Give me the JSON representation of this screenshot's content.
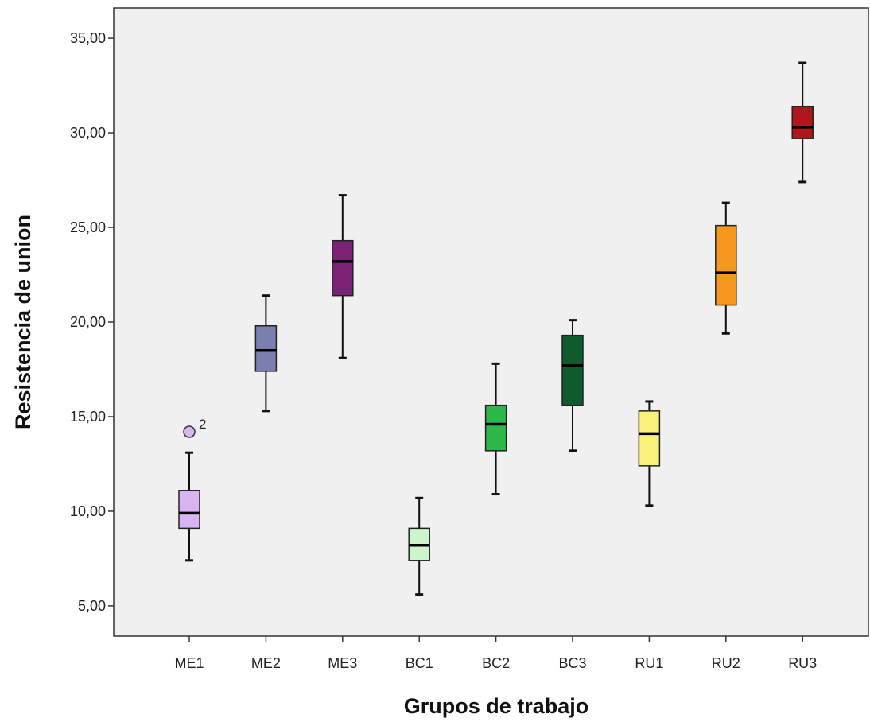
{
  "chart_data": {
    "type": "boxplot",
    "xlabel": "Grupos de trabajo",
    "ylabel": "Resistencia de union",
    "ylim": [
      3.4,
      36.6
    ],
    "yticks": [
      5,
      10,
      15,
      20,
      25,
      30,
      35
    ],
    "ytick_labels": [
      "5,00",
      "10,00",
      "15,00",
      "20,00",
      "25,00",
      "30,00",
      "35,00"
    ],
    "grid": false,
    "plot_background": "#f0f0f0",
    "categories": [
      "ME1",
      "ME2",
      "ME3",
      "BC1",
      "BC2",
      "BC3",
      "RU1",
      "RU2",
      "RU3"
    ],
    "boxes": [
      {
        "name": "ME1",
        "color": "#d8b4f0",
        "min": 7.4,
        "q1": 9.1,
        "median": 9.9,
        "q3": 11.1,
        "max": 13.1,
        "outliers": [
          {
            "value": 14.2,
            "label": "2"
          }
        ]
      },
      {
        "name": "ME2",
        "color": "#7b7fb0",
        "min": 15.3,
        "q1": 17.4,
        "median": 18.5,
        "q3": 19.8,
        "max": 21.4,
        "outliers": []
      },
      {
        "name": "ME3",
        "color": "#7a2374",
        "min": 18.1,
        "q1": 21.4,
        "median": 23.2,
        "q3": 24.3,
        "max": 26.7,
        "outliers": []
      },
      {
        "name": "BC1",
        "color": "#ccf5cc",
        "min": 5.6,
        "q1": 7.4,
        "median": 8.2,
        "q3": 9.1,
        "max": 10.7,
        "outliers": []
      },
      {
        "name": "BC2",
        "color": "#2db84a",
        "min": 10.9,
        "q1": 13.2,
        "median": 14.6,
        "q3": 15.6,
        "max": 17.8,
        "outliers": []
      },
      {
        "name": "BC3",
        "color": "#0f5b2b",
        "min": 13.2,
        "q1": 15.6,
        "median": 17.7,
        "q3": 19.3,
        "max": 20.1,
        "outliers": []
      },
      {
        "name": "RU1",
        "color": "#f8f27a",
        "min": 10.3,
        "q1": 12.4,
        "median": 14.1,
        "q3": 15.3,
        "max": 15.8,
        "outliers": []
      },
      {
        "name": "RU2",
        "color": "#f5961f",
        "min": 19.4,
        "q1": 20.9,
        "median": 22.6,
        "q3": 25.1,
        "max": 26.3,
        "outliers": []
      },
      {
        "name": "RU3",
        "color": "#b0171d",
        "min": 27.4,
        "q1": 29.7,
        "median": 30.3,
        "q3": 31.4,
        "max": 33.7,
        "outliers": []
      }
    ]
  }
}
